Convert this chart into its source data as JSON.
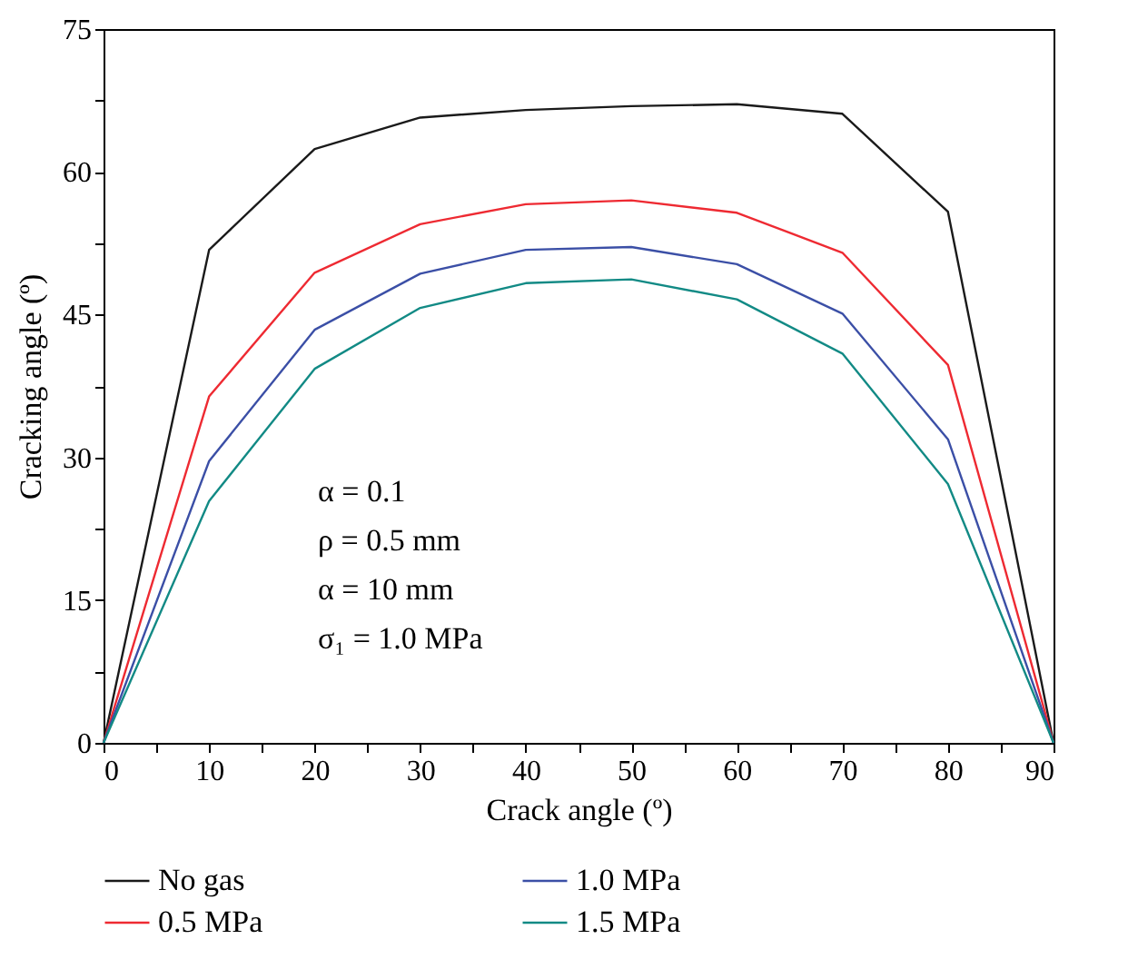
{
  "chart_data": {
    "type": "line",
    "xlabel": "Crack angle (º)",
    "ylabel": "Cracking angle (º)",
    "x": [
      0,
      10,
      20,
      30,
      40,
      50,
      60,
      70,
      80,
      90
    ],
    "series": [
      {
        "name": "No gas",
        "color": "#1a1a1a",
        "values": [
          0,
          51.8,
          62.4,
          65.7,
          66.5,
          66.9,
          67.1,
          66.1,
          55.8,
          0
        ]
      },
      {
        "name": "0.5 MPa",
        "color": "#ee2a32",
        "values": [
          0,
          36.4,
          49.4,
          54.5,
          56.6,
          57.0,
          55.7,
          51.5,
          39.7,
          0
        ]
      },
      {
        "name": "1.0 MPa",
        "color": "#3b4fa6",
        "values": [
          0,
          29.6,
          43.4,
          49.3,
          51.8,
          52.1,
          50.3,
          45.1,
          31.9,
          0
        ]
      },
      {
        "name": "1.5 MPa",
        "color": "#128a85",
        "values": [
          0,
          25.4,
          39.3,
          45.7,
          48.3,
          48.7,
          46.6,
          40.9,
          27.2,
          0
        ]
      }
    ],
    "xlim": [
      0,
      90
    ],
    "xticks": [
      0,
      {
        "value": 5,
        "label": null
      },
      10,
      {
        "value": 15,
        "label": null
      },
      20,
      {
        "value": 25,
        "label": null
      },
      30,
      {
        "value": 35,
        "label": null
      },
      40,
      {
        "value": 45,
        "label": null
      },
      50,
      {
        "value": 55,
        "label": null
      },
      60,
      {
        "value": 65,
        "label": null
      },
      70,
      {
        "value": 75,
        "label": null
      },
      80,
      {
        "value": 85,
        "label": null
      },
      90
    ],
    "ylim": [
      0,
      75
    ],
    "yticks": [
      0,
      {
        "value": 7.5,
        "label": null
      },
      15,
      {
        "value": 22.5,
        "label": null
      },
      30,
      {
        "value": 37.5,
        "label": null
      },
      45,
      {
        "value": 52.5,
        "label": null
      },
      60,
      {
        "value": 67.5,
        "label": null
      },
      75
    ],
    "annotations": [
      "α = 0.1",
      "ρ = 0.5 mm",
      "α = 10 mm",
      "σ₁ = 1.0 MPa"
    ],
    "grid": false,
    "legend": "bottom",
    "marker": "none",
    "line_style": "solid"
  }
}
